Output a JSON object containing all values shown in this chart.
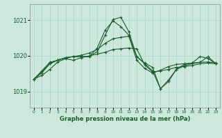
{
  "title": "Graphe pression niveau de la mer (hPa)",
  "background_color": "#cce8dd",
  "grid_color": "#aad4c4",
  "line_color": "#1a5c2a",
  "x_labels": [
    "0",
    "1",
    "2",
    "3",
    "4",
    "5",
    "6",
    "7",
    "8",
    "9",
    "10",
    "11",
    "12",
    "13",
    "14",
    "15",
    "16",
    "17",
    "18",
    "19",
    "20",
    "21",
    "22",
    "23"
  ],
  "ylim": [
    1018.55,
    1021.45
  ],
  "yticks": [
    1019,
    1020,
    1021
  ],
  "series": [
    [
      1019.35,
      1019.45,
      1019.62,
      1019.83,
      1019.92,
      1019.88,
      1019.95,
      1020.0,
      1020.05,
      1020.1,
      1020.18,
      1020.2,
      1020.22,
      1020.2,
      1019.75,
      1019.55,
      1019.58,
      1019.62,
      1019.68,
      1019.7,
      1019.73,
      1019.78,
      1019.8,
      1019.78
    ],
    [
      1019.35,
      1019.55,
      1019.78,
      1019.88,
      1019.95,
      1019.98,
      1020.02,
      1020.08,
      1020.18,
      1020.35,
      1020.48,
      1020.52,
      1020.55,
      1019.88,
      1019.65,
      1019.52,
      1019.6,
      1019.7,
      1019.76,
      1019.78,
      1019.8,
      1019.82,
      1019.83,
      1019.8
    ],
    [
      1019.35,
      1019.58,
      1019.82,
      1019.88,
      1019.94,
      1019.98,
      1019.98,
      1019.98,
      1020.22,
      1020.72,
      1020.98,
      1020.82,
      1020.58,
      1019.98,
      1019.78,
      1019.58,
      1019.08,
      1019.32,
      1019.62,
      1019.72,
      1019.78,
      1019.82,
      1019.98,
      1019.78
    ],
    [
      1019.35,
      1019.52,
      1019.78,
      1019.88,
      1019.95,
      1019.98,
      1019.98,
      1019.98,
      1020.12,
      1020.58,
      1021.02,
      1021.08,
      1020.68,
      1019.98,
      1019.8,
      1019.68,
      1019.08,
      1019.28,
      1019.62,
      1019.76,
      1019.8,
      1019.98,
      1019.93,
      1019.78
    ]
  ]
}
